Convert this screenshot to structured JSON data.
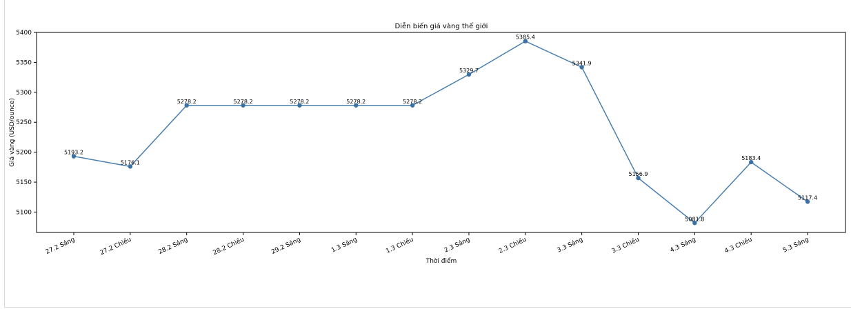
{
  "chart_data": {
    "type": "line",
    "title": "Diễn biến giá vàng thế giới",
    "xlabel": "Thời điểm",
    "ylabel": "Giá vàng (USD/ounce)",
    "categories": [
      "27.2 Sáng",
      "27.2 Chiều",
      "28.2 Sáng",
      "28.2 Chiều",
      "29.2 Sáng",
      "1.3 Sáng",
      "1.3 Chiều",
      "2.3 Sáng",
      "2.3 Chiều",
      "3.3 Sáng",
      "3.3 Chiều",
      "4.3 Sáng",
      "4.3 Chiều",
      "5.3 Sáng"
    ],
    "values": [
      5193.2,
      5176.1,
      5278.2,
      5278.2,
      5278.2,
      5278.2,
      5278.2,
      5329.7,
      5385.4,
      5341.9,
      5156.9,
      5081.8,
      5183.4,
      5117.4
    ],
    "data_labels": [
      "5193.2",
      "5176.1",
      "5278.2",
      "5278.2",
      "5278.2",
      "5278.2",
      "5278.2",
      "5329.7",
      "5385.4",
      "5341.9",
      "5156.9",
      "5081.8",
      "5183.4",
      "5117.4"
    ],
    "yticks": [
      5100,
      5150,
      5200,
      5250,
      5300,
      5350,
      5400
    ],
    "ytick_labels": [
      "5100",
      "5150",
      "5200",
      "5250",
      "5300",
      "5350",
      "5400"
    ],
    "ylim": [
      5066,
      5400
    ],
    "grid": false,
    "colors": {
      "line": "#4a7fb0",
      "marker": "#3b72a5"
    }
  }
}
